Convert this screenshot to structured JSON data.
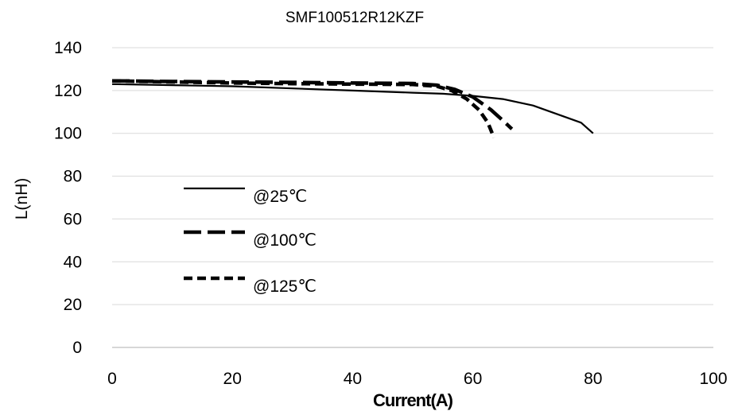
{
  "chart_data": {
    "type": "line",
    "title": "SMF100512R12KZF",
    "xlabel": "Current(A)",
    "ylabel": "L(nH)",
    "xlim": [
      0,
      100
    ],
    "ylim": [
      0,
      140
    ],
    "xticks": [
      "0",
      "20",
      "40",
      "60",
      "80",
      "100"
    ],
    "yticks": [
      "0",
      "20",
      "40",
      "60",
      "80",
      "100",
      "120",
      "140"
    ],
    "grid": true,
    "legend": "center-left",
    "series": [
      {
        "name": "@25℃",
        "style": "solid",
        "x": [
          0,
          10,
          20,
          30,
          40,
          50,
          55,
          60,
          65,
          70,
          75,
          78,
          80
        ],
        "y": [
          123,
          122.5,
          122,
          121,
          120,
          119,
          118.5,
          117.5,
          116,
          113,
          108,
          105,
          100
        ]
      },
      {
        "name": "@100℃",
        "style": "long-dash",
        "x": [
          0,
          10,
          20,
          30,
          40,
          50,
          54,
          57,
          60,
          63,
          65,
          66.5
        ],
        "y": [
          124.5,
          124.2,
          124,
          123.8,
          123.5,
          123.3,
          122.5,
          120.5,
          117,
          111,
          106,
          102
        ]
      },
      {
        "name": "@125℃",
        "style": "short-dash",
        "x": [
          0,
          10,
          20,
          30,
          40,
          50,
          54,
          56.5,
          59,
          61,
          62.5,
          63.5
        ],
        "y": [
          124.5,
          124,
          123.5,
          123.2,
          123,
          122.8,
          122,
          120,
          116,
          111,
          105,
          98
        ]
      }
    ]
  }
}
